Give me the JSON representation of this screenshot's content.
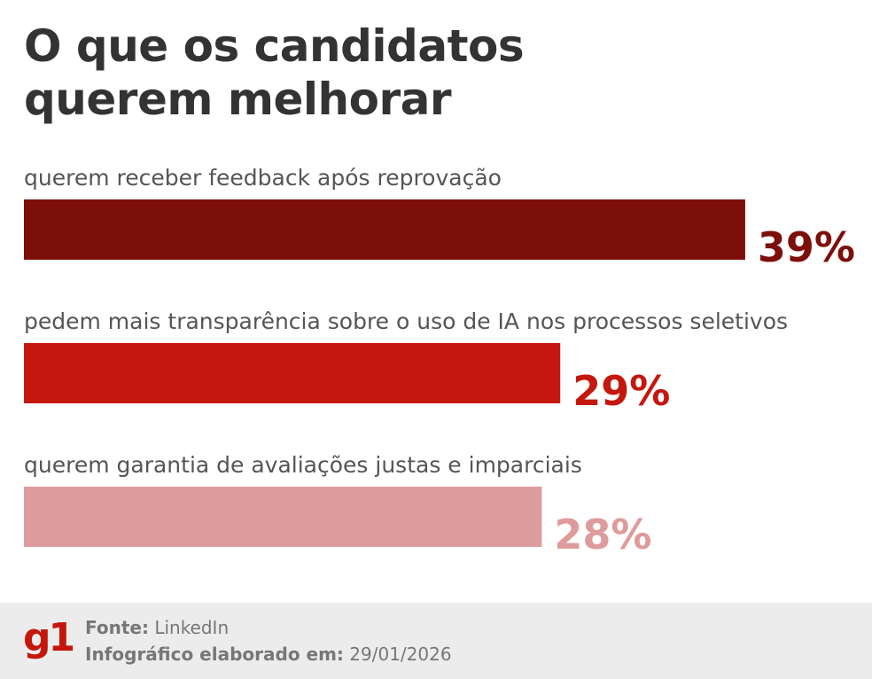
{
  "chart_data": {
    "type": "bar",
    "orientation": "horizontal",
    "title": "O que os candidatos querem melhorar",
    "categories": [
      "querem receber feedback após reprovação",
      "pedem mais transparência sobre o uso de IA nos processos seletivos",
      "querem garantia de avaliações justas e imparciais"
    ],
    "values": [
      39,
      29,
      28
    ],
    "value_labels": [
      "39%",
      "29%",
      "28%"
    ],
    "colors": [
      "#7d0f0a",
      "#c4180f",
      "#de9b9b"
    ]
  },
  "footer": {
    "logo": "g1",
    "source_label": "Fonte:",
    "source": "LinkedIn",
    "date_label": "Infográfico elaborado em:",
    "date": "29/01/2026"
  }
}
